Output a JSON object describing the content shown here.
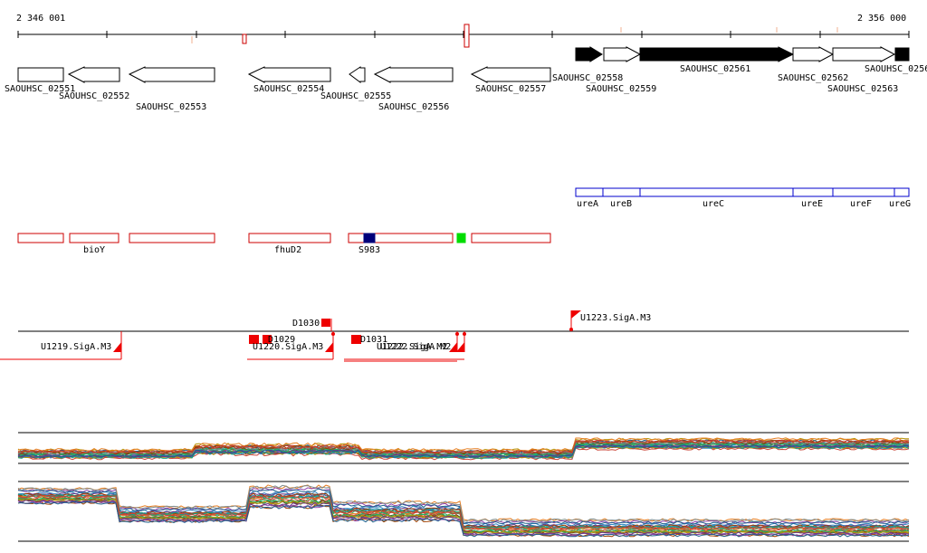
{
  "coordinates": {
    "start_label": "2 346 001",
    "end_label": "2 356 000"
  },
  "colors": {
    "gene_outline": "#000000",
    "gene_fill_forward": "#000000",
    "operon_outline": "#0000cc",
    "feature_outline": "#cc0000",
    "feature_dark": "#00007a",
    "feature_green": "#00dd00",
    "marker_red": "#ee0000",
    "ruler_marker": "#cc0000"
  },
  "genes": [
    {
      "label": "SAOUHSC_02551",
      "strand": "-",
      "filled": false,
      "x1": 20,
      "x2": 70
    },
    {
      "label": "SAOUHSC_02552",
      "strand": "-",
      "filled": false,
      "x1": 76,
      "x2": 132
    },
    {
      "label": "SAOUHSC_02553",
      "strand": "-",
      "filled": false,
      "x1": 143,
      "x2": 237
    },
    {
      "label": "SAOUHSC_02554",
      "strand": "-",
      "filled": false,
      "x1": 275,
      "x2": 365
    },
    {
      "label": "SAOUHSC_02555",
      "strand": "-",
      "filled": false,
      "x1": 386,
      "x2": 403
    },
    {
      "label": "SAOUHSC_02556",
      "strand": "-",
      "filled": false,
      "x1": 414,
      "x2": 500
    },
    {
      "label": "SAOUHSC_02557",
      "strand": "-",
      "filled": false,
      "x1": 521,
      "x2": 608
    },
    {
      "label": "SAOUHSC_02558",
      "strand": "+",
      "filled": true,
      "x1": 636,
      "x2": 665
    },
    {
      "label": "SAOUHSC_02559",
      "strand": "+",
      "filled": false,
      "x1": 667,
      "x2": 707
    },
    {
      "label": "SAOUHSC_02561",
      "strand": "+",
      "filled": true,
      "x1": 707,
      "x2": 876
    },
    {
      "label": "SAOUHSC_02562",
      "strand": "+",
      "filled": false,
      "x1": 876,
      "x2": 920
    },
    {
      "label": "SAOUHSC_02563",
      "strand": "+",
      "filled": false,
      "x1": 920,
      "x2": 988
    },
    {
      "label": "SAOUHSC_0256",
      "strand": "+",
      "filled": true,
      "x1": 988,
      "x2": 1004
    }
  ],
  "operon_genes": [
    "ureA",
    "ureB",
    "ureC",
    "ureE",
    "ureF",
    "ureG"
  ],
  "features": [
    "bioY",
    "fhuD2",
    "S983"
  ],
  "transcript_labels": [
    "D1030",
    "U1223.SigA.M3",
    "U1219.SigA.M3",
    "D1029",
    "U1220.SigA.M3",
    "D1031",
    "U1222.SigA.M2"
  ]
}
